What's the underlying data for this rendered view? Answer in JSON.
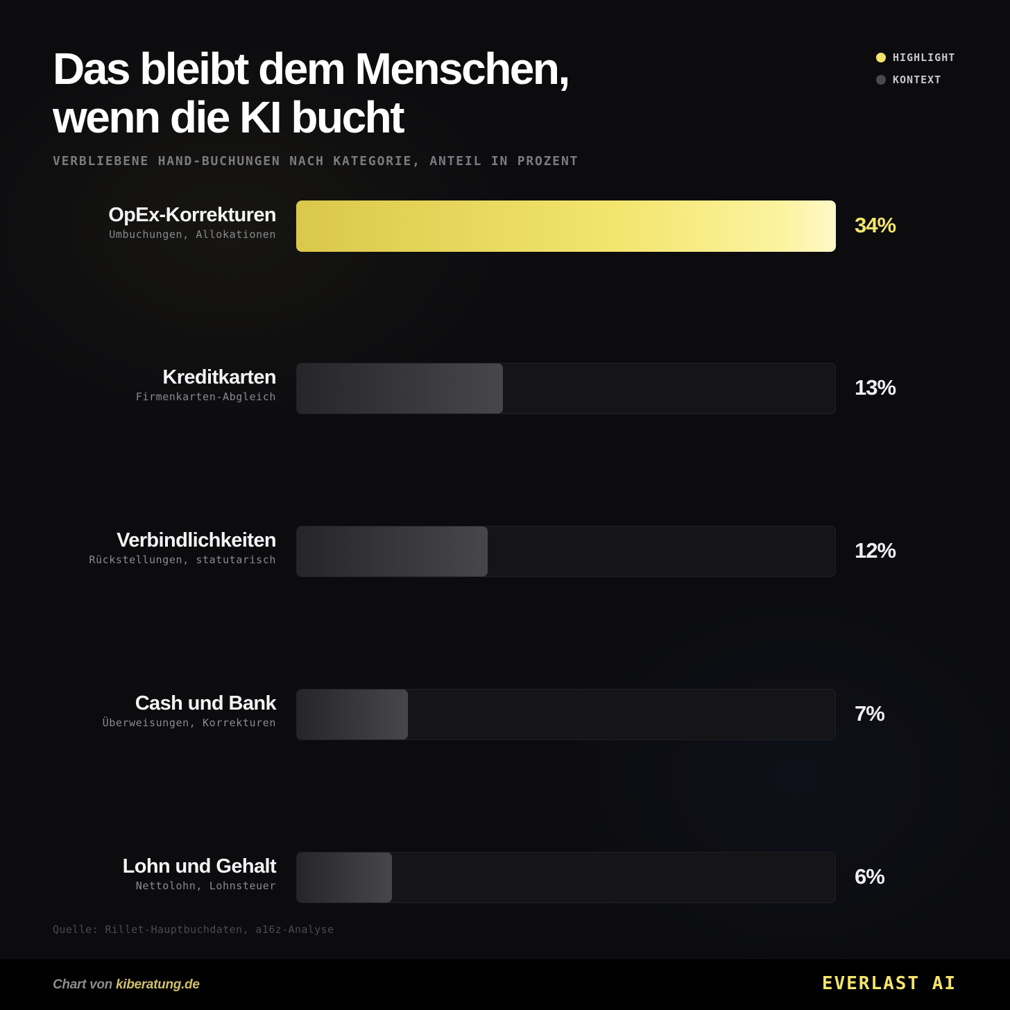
{
  "title_line1": "Das bleibt dem Menschen,",
  "title_line2": "wenn die KI bucht",
  "subtitle": "VERBLIEBENE HAND-BUCHUNGEN NACH KATEGORIE, ANTEIL IN PROZENT",
  "legend": [
    {
      "label": "HIGHLIGHT",
      "color": "#f4e46c"
    },
    {
      "label": "KONTEXT",
      "color": "#4a4a4e"
    }
  ],
  "rows": [
    {
      "name": "OpEx-Korrekturen",
      "sub": "Umbuchungen, Allokationen",
      "pct_label": "34%",
      "highlight": true
    },
    {
      "name": "Kreditkarten",
      "sub": "Firmenkarten-Abgleich",
      "pct_label": "13%",
      "highlight": false
    },
    {
      "name": "Verbindlichkeiten",
      "sub": "Rückstellungen, statutarisch",
      "pct_label": "12%",
      "highlight": false
    },
    {
      "name": "Cash und Bank",
      "sub": "Überweisungen, Korrekturen",
      "pct_label": "7%",
      "highlight": false
    },
    {
      "name": "Lohn und Gehalt",
      "sub": "Nettolohn, Lohnsteuer",
      "pct_label": "6%",
      "highlight": false
    }
  ],
  "chart_data": {
    "type": "bar",
    "orientation": "horizontal",
    "title": "Das bleibt dem Menschen, wenn die KI bucht",
    "subtitle": "VERBLIEBENE HAND-BUCHUNGEN NACH KATEGORIE, ANTEIL IN PROZENT",
    "categories": [
      "OpEx-Korrekturen",
      "Kreditkarten",
      "Verbindlichkeiten",
      "Cash und Bank",
      "Lohn und Gehalt"
    ],
    "values": [
      34,
      13,
      12,
      7,
      6
    ],
    "xlim": [
      0,
      34
    ],
    "highlighted": [
      "OpEx-Korrekturen"
    ],
    "legend": "top-right",
    "grid": false
  },
  "source": "Quelle: Rillet-Hauptbuchdaten, a16z-Analyse",
  "footer": {
    "credit_prefix": "Chart von ",
    "credit_site": "kiberatung.de",
    "brand": "EVERLAST AI"
  }
}
